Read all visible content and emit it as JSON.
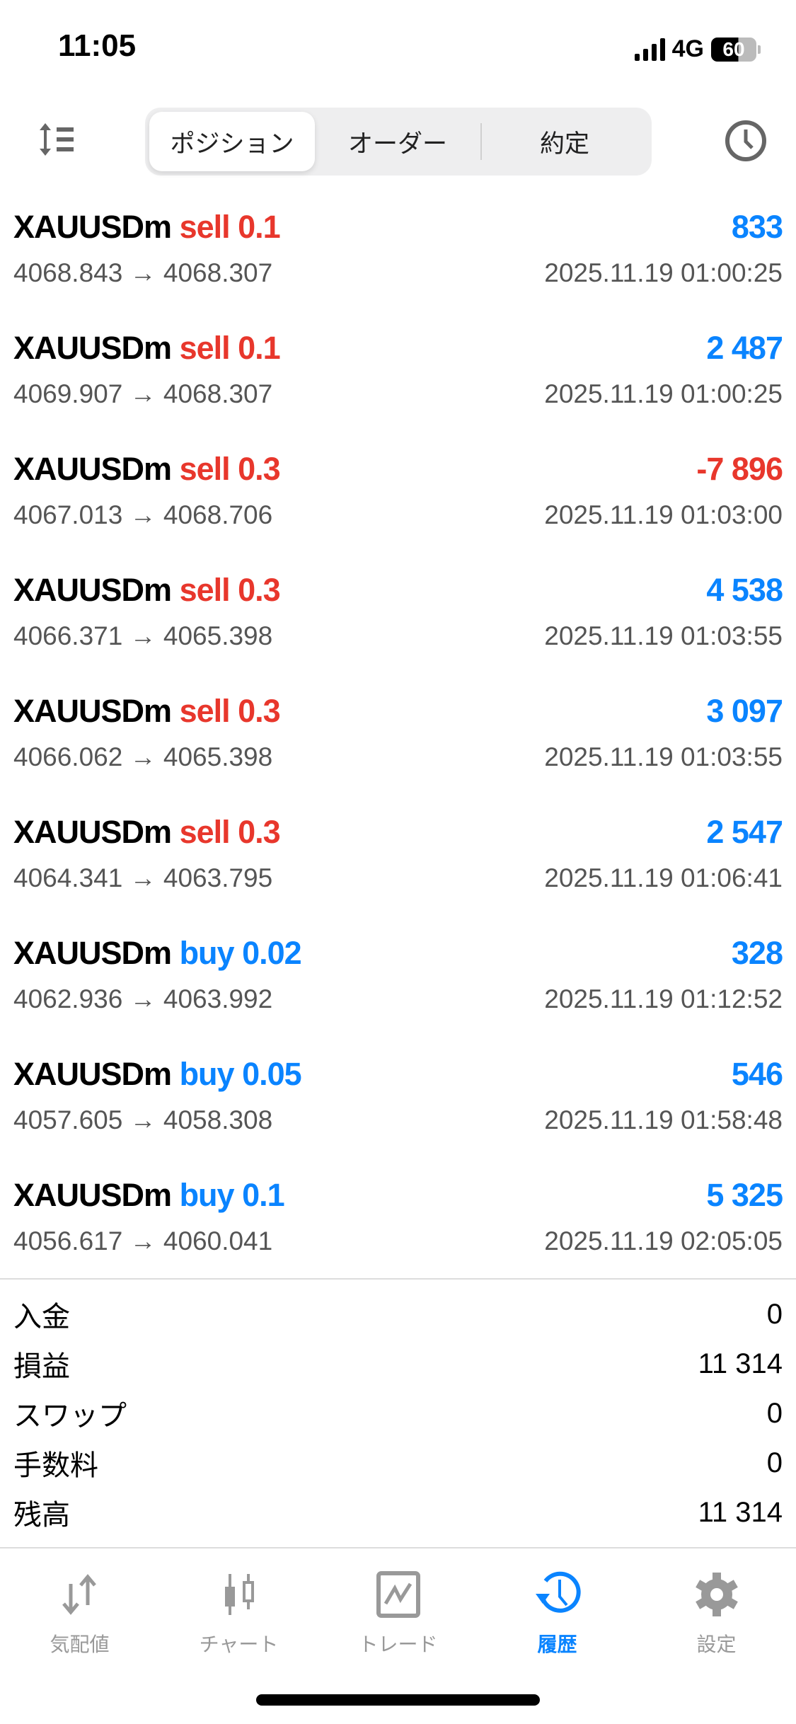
{
  "status_bar": {
    "time": "11:05",
    "network": "4G",
    "battery": "60"
  },
  "toolbar": {
    "tabs": [
      {
        "label": "ポジション",
        "active": true
      },
      {
        "label": "オーダー",
        "active": false
      },
      {
        "label": "約定",
        "active": false
      }
    ],
    "icons": [
      "sort-icon",
      "clock-icon"
    ]
  },
  "deals": [
    {
      "symbol": "XAUUSDm",
      "side": "sell",
      "volume": "0.1",
      "profit": "833",
      "prices": "4068.843 → 4068.307",
      "time": "2025.11.19 01:00:25"
    },
    {
      "symbol": "XAUUSDm",
      "side": "sell",
      "volume": "0.1",
      "profit": "2 487",
      "prices": "4069.907 → 4068.307",
      "time": "2025.11.19 01:00:25"
    },
    {
      "symbol": "XAUUSDm",
      "side": "sell",
      "volume": "0.3",
      "profit": "-7 896",
      "prices": "4067.013 → 4068.706",
      "time": "2025.11.19 01:03:00"
    },
    {
      "symbol": "XAUUSDm",
      "side": "sell",
      "volume": "0.3",
      "profit": "4 538",
      "prices": "4066.371 → 4065.398",
      "time": "2025.11.19 01:03:55"
    },
    {
      "symbol": "XAUUSDm",
      "side": "sell",
      "volume": "0.3",
      "profit": "3 097",
      "prices": "4066.062 → 4065.398",
      "time": "2025.11.19 01:03:55"
    },
    {
      "symbol": "XAUUSDm",
      "side": "sell",
      "volume": "0.3",
      "profit": "2 547",
      "prices": "4064.341 → 4063.795",
      "time": "2025.11.19 01:06:41"
    },
    {
      "symbol": "XAUUSDm",
      "side": "buy",
      "volume": "0.02",
      "profit": "328",
      "prices": "4062.936 → 4063.992",
      "time": "2025.11.19 01:12:52"
    },
    {
      "symbol": "XAUUSDm",
      "side": "buy",
      "volume": "0.05",
      "profit": "546",
      "prices": "4057.605 → 4058.308",
      "time": "2025.11.19 01:58:48"
    },
    {
      "symbol": "XAUUSDm",
      "side": "buy",
      "volume": "0.1",
      "profit": "5 325",
      "prices": "4056.617 → 4060.041",
      "time": "2025.11.19 02:05:05"
    }
  ],
  "summary": [
    {
      "label": "入金",
      "value": "0"
    },
    {
      "label": "損益",
      "value": "11 314"
    },
    {
      "label": "スワップ",
      "value": "0"
    },
    {
      "label": "手数料",
      "value": "0"
    },
    {
      "label": "残高",
      "value": "11 314"
    }
  ],
  "tabbar": [
    {
      "label": "気配値",
      "icon": "quotes-icon",
      "active": false
    },
    {
      "label": "チャート",
      "icon": "chart-icon",
      "active": false
    },
    {
      "label": "トレード",
      "icon": "trade-icon",
      "active": false
    },
    {
      "label": "履歴",
      "icon": "history-icon",
      "active": true
    },
    {
      "label": "設定",
      "icon": "settings-icon",
      "active": false
    }
  ],
  "colors": {
    "sell": "#e8372c",
    "buy": "#0a84ff",
    "profit_positive": "#0a84ff",
    "profit_negative": "#e8372c",
    "active_tab": "#0a84ff",
    "inactive_tab": "#999999"
  }
}
